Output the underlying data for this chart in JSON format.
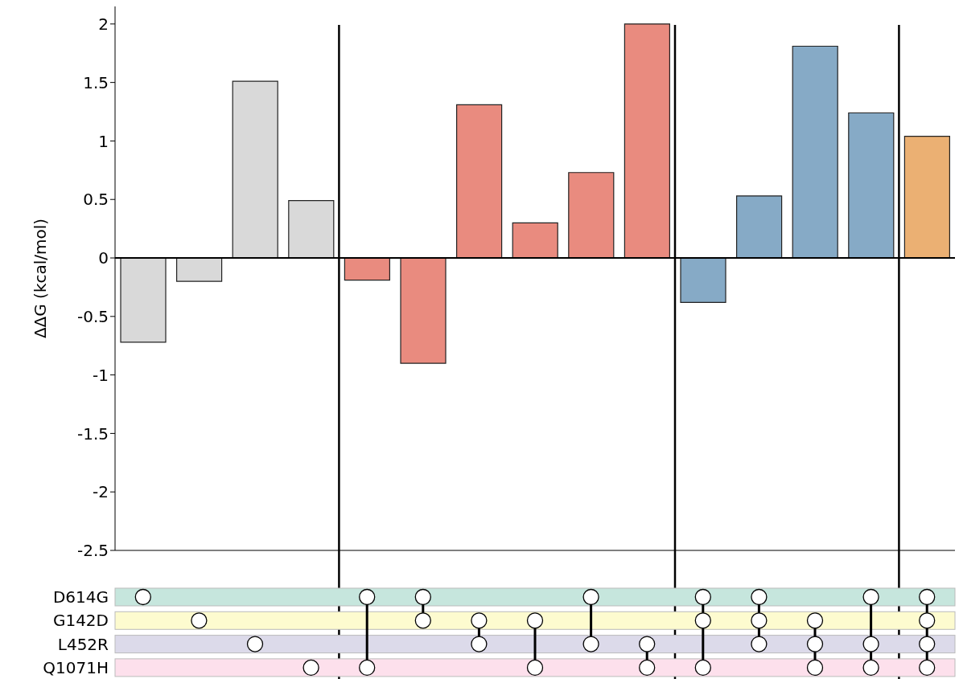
{
  "chart_data": {
    "type": "bar",
    "categories": [
      null,
      null,
      null,
      null,
      null,
      null,
      null,
      null,
      null,
      null,
      null,
      null,
      null,
      null,
      null
    ],
    "values": [
      -0.72,
      -0.2,
      1.51,
      0.49,
      -0.19,
      -0.9,
      1.31,
      0.3,
      0.73,
      2.0,
      -0.38,
      0.53,
      1.81,
      1.24,
      1.04
    ],
    "colors": [
      "#d9d9d9",
      "#d9d9d9",
      "#d9d9d9",
      "#d9d9d9",
      "#e98b7f",
      "#e98b7f",
      "#e98b7f",
      "#e98b7f",
      "#e98b7f",
      "#e98b7f",
      "#86aac6",
      "#86aac6",
      "#86aac6",
      "#86aac6",
      "#ebb073"
    ],
    "ylabel": "ΔΔG (kcal/mol)",
    "ylim": [
      -2.5,
      2.15
    ],
    "yticks": [
      -2.5,
      -2,
      -1.5,
      -1,
      -0.5,
      0,
      0.5,
      1,
      1.5,
      2
    ],
    "ref_lines": [
      {
        "axis": "y",
        "value": 0
      }
    ],
    "annotations": [
      "D614G",
      "G142D",
      "L452R",
      "Q1071H"
    ]
  }
}
